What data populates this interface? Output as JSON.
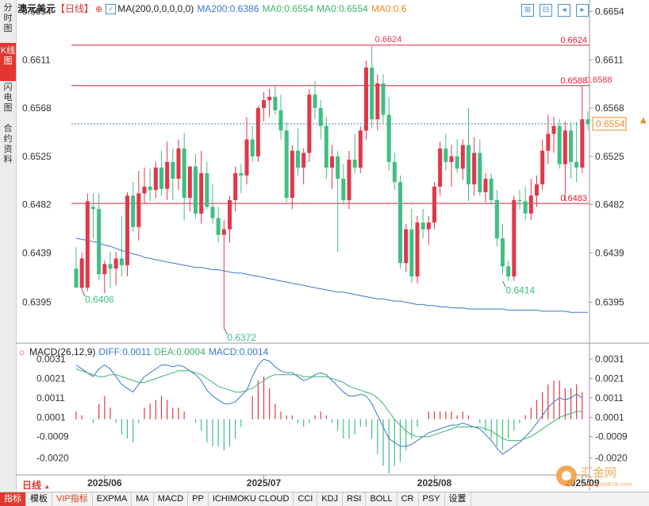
{
  "sidebar": {
    "tabs": [
      "分时图",
      "K线图",
      "闪电图",
      "合约资料"
    ],
    "active_index": 1
  },
  "header": {
    "symbol": "澳元美元",
    "period": "【日线】",
    "ma_params": "MA(200,0,0,0,0,0)",
    "ma200": "MA200:0.6386",
    "ma0a": "MA0:0.6554",
    "ma0b": "MA0:0.6554",
    "ma0c": "MA0:0.6"
  },
  "macd_header": {
    "name": "MACD(26,12,9)",
    "diff": "DIFF:0.0011",
    "dea": "DEA:0.0004",
    "macd": "MACD:0.0014"
  },
  "period_label": "日线",
  "bottom_tabs": [
    "指标",
    "模板",
    "VIP指标",
    "EXPMA",
    "MA",
    "MACD",
    "PP",
    "ICHIMOKU CLOUD",
    "CCI",
    "KDJ",
    "RSI",
    "BOLL",
    "CR",
    "PSY",
    "设置"
  ],
  "watermark": {
    "name": "汇金网",
    "url": "www.gold678.com"
  },
  "colors": {
    "up": "#e2374a",
    "down": "#3fbf84",
    "ma200": "#3a78c9",
    "diff": "#3a78c9",
    "dea": "#3cb371",
    "hline": "#d6203a",
    "last": "#f08a24"
  },
  "chart_data": [
    {
      "type": "candlestick",
      "title": "澳元美元【日线】",
      "x_tick_labels": [
        "2025/06",
        "2025/07",
        "2025/08",
        "2025/09"
      ],
      "y_ticks": [
        "0.6654",
        "0.6611",
        "0.6568",
        "0.6525",
        "0.6482",
        "0.6439",
        "0.6395"
      ],
      "ylim": [
        0.636,
        0.666
      ],
      "grid": false,
      "horizontal_lines": [
        {
          "value": 0.6624,
          "label": "0.6624"
        },
        {
          "value": 0.6588,
          "label": "0.6588"
        },
        {
          "value": 0.6483,
          "label": "0.6483"
        }
      ],
      "last_price": {
        "value": 0.6554,
        "label": "0.6554"
      },
      "annotations": [
        {
          "label": "0.6624",
          "index": 52,
          "value": 0.6624
        },
        {
          "label": "0.6588",
          "index": 89,
          "value": 0.6588
        },
        {
          "label": "0.6406",
          "index": 1,
          "value": 0.6406
        },
        {
          "label": "0.6372",
          "index": 26,
          "value": 0.6372
        },
        {
          "label": "0.6414",
          "index": 75,
          "value": 0.6414
        }
      ],
      "candles": [
        {
          "o": 0.6425,
          "h": 0.6444,
          "l": 0.641,
          "c": 0.6408
        },
        {
          "o": 0.6408,
          "h": 0.6439,
          "l": 0.6406,
          "c": 0.6434
        },
        {
          "o": 0.6408,
          "h": 0.6492,
          "l": 0.6405,
          "c": 0.6485
        },
        {
          "o": 0.648,
          "h": 0.6492,
          "l": 0.6452,
          "c": 0.6478
        },
        {
          "o": 0.6478,
          "h": 0.6492,
          "l": 0.6415,
          "c": 0.642
        },
        {
          "o": 0.642,
          "h": 0.6432,
          "l": 0.6403,
          "c": 0.6429
        },
        {
          "o": 0.6429,
          "h": 0.644,
          "l": 0.6408,
          "c": 0.6425
        },
        {
          "o": 0.6425,
          "h": 0.644,
          "l": 0.641,
          "c": 0.6434
        },
        {
          "o": 0.6434,
          "h": 0.6472,
          "l": 0.6418,
          "c": 0.6428
        },
        {
          "o": 0.6428,
          "h": 0.6493,
          "l": 0.6418,
          "c": 0.649
        },
        {
          "o": 0.649,
          "h": 0.6502,
          "l": 0.6458,
          "c": 0.6462
        },
        {
          "o": 0.6462,
          "h": 0.6512,
          "l": 0.645,
          "c": 0.6492
        },
        {
          "o": 0.6492,
          "h": 0.6515,
          "l": 0.6483,
          "c": 0.6498
        },
        {
          "o": 0.6498,
          "h": 0.6514,
          "l": 0.6485,
          "c": 0.6495
        },
        {
          "o": 0.6495,
          "h": 0.652,
          "l": 0.6488,
          "c": 0.6515
        },
        {
          "o": 0.6515,
          "h": 0.653,
          "l": 0.649,
          "c": 0.6496
        },
        {
          "o": 0.6496,
          "h": 0.6538,
          "l": 0.6486,
          "c": 0.652
        },
        {
          "o": 0.652,
          "h": 0.6532,
          "l": 0.6486,
          "c": 0.6505
        },
        {
          "o": 0.6505,
          "h": 0.654,
          "l": 0.6495,
          "c": 0.6532
        },
        {
          "o": 0.6532,
          "h": 0.6546,
          "l": 0.6468,
          "c": 0.6488
        },
        {
          "o": 0.6488,
          "h": 0.6515,
          "l": 0.6476,
          "c": 0.6516
        },
        {
          "o": 0.6516,
          "h": 0.6527,
          "l": 0.647,
          "c": 0.6474
        },
        {
          "o": 0.6474,
          "h": 0.653,
          "l": 0.6465,
          "c": 0.651
        },
        {
          "o": 0.651,
          "h": 0.652,
          "l": 0.6478,
          "c": 0.648
        },
        {
          "o": 0.648,
          "h": 0.65,
          "l": 0.6465,
          "c": 0.647
        },
        {
          "o": 0.647,
          "h": 0.648,
          "l": 0.6448,
          "c": 0.6455
        },
        {
          "o": 0.6455,
          "h": 0.6468,
          "l": 0.6372,
          "c": 0.646
        },
        {
          "o": 0.646,
          "h": 0.649,
          "l": 0.6448,
          "c": 0.6486
        },
        {
          "o": 0.6486,
          "h": 0.6516,
          "l": 0.6476,
          "c": 0.651
        },
        {
          "o": 0.651,
          "h": 0.6518,
          "l": 0.6492,
          "c": 0.6508
        },
        {
          "o": 0.6508,
          "h": 0.656,
          "l": 0.65,
          "c": 0.654
        },
        {
          "o": 0.654,
          "h": 0.6552,
          "l": 0.652,
          "c": 0.6525
        },
        {
          "o": 0.6525,
          "h": 0.657,
          "l": 0.652,
          "c": 0.6568
        },
        {
          "o": 0.6568,
          "h": 0.6582,
          "l": 0.6556,
          "c": 0.6575
        },
        {
          "o": 0.6575,
          "h": 0.6585,
          "l": 0.656,
          "c": 0.6578
        },
        {
          "o": 0.6578,
          "h": 0.6588,
          "l": 0.6562,
          "c": 0.6566
        },
        {
          "o": 0.6566,
          "h": 0.658,
          "l": 0.654,
          "c": 0.6548
        },
        {
          "o": 0.6548,
          "h": 0.6555,
          "l": 0.6484,
          "c": 0.6488
        },
        {
          "o": 0.6488,
          "h": 0.6535,
          "l": 0.6478,
          "c": 0.653
        },
        {
          "o": 0.653,
          "h": 0.655,
          "l": 0.6508,
          "c": 0.6515
        },
        {
          "o": 0.6515,
          "h": 0.6532,
          "l": 0.65,
          "c": 0.6528
        },
        {
          "o": 0.6528,
          "h": 0.6585,
          "l": 0.652,
          "c": 0.658
        },
        {
          "o": 0.658,
          "h": 0.6592,
          "l": 0.6558,
          "c": 0.6568
        },
        {
          "o": 0.6568,
          "h": 0.6575,
          "l": 0.654,
          "c": 0.6552
        },
        {
          "o": 0.6552,
          "h": 0.656,
          "l": 0.6505,
          "c": 0.6515
        },
        {
          "o": 0.6515,
          "h": 0.6535,
          "l": 0.6496,
          "c": 0.6525
        },
        {
          "o": 0.6525,
          "h": 0.653,
          "l": 0.644,
          "c": 0.6505
        },
        {
          "o": 0.6505,
          "h": 0.6518,
          "l": 0.6482,
          "c": 0.6486
        },
        {
          "o": 0.6486,
          "h": 0.653,
          "l": 0.6478,
          "c": 0.6522
        },
        {
          "o": 0.6522,
          "h": 0.6545,
          "l": 0.651,
          "c": 0.6515
        },
        {
          "o": 0.6515,
          "h": 0.6552,
          "l": 0.651,
          "c": 0.6548
        },
        {
          "o": 0.6548,
          "h": 0.661,
          "l": 0.654,
          "c": 0.6604
        },
        {
          "o": 0.6604,
          "h": 0.6624,
          "l": 0.655,
          "c": 0.6558
        },
        {
          "o": 0.6558,
          "h": 0.6598,
          "l": 0.6548,
          "c": 0.659
        },
        {
          "o": 0.659,
          "h": 0.6598,
          "l": 0.6555,
          "c": 0.6562
        },
        {
          "o": 0.6562,
          "h": 0.6578,
          "l": 0.6512,
          "c": 0.652
        },
        {
          "o": 0.652,
          "h": 0.6528,
          "l": 0.6495,
          "c": 0.6502
        },
        {
          "o": 0.6502,
          "h": 0.6508,
          "l": 0.6425,
          "c": 0.643
        },
        {
          "o": 0.643,
          "h": 0.6465,
          "l": 0.6422,
          "c": 0.646
        },
        {
          "o": 0.646,
          "h": 0.6478,
          "l": 0.6412,
          "c": 0.6418
        },
        {
          "o": 0.6418,
          "h": 0.6472,
          "l": 0.6412,
          "c": 0.6466
        },
        {
          "o": 0.6466,
          "h": 0.6478,
          "l": 0.6452,
          "c": 0.646
        },
        {
          "o": 0.646,
          "h": 0.6472,
          "l": 0.6446,
          "c": 0.6466
        },
        {
          "o": 0.6466,
          "h": 0.6502,
          "l": 0.646,
          "c": 0.6498
        },
        {
          "o": 0.6498,
          "h": 0.6538,
          "l": 0.649,
          "c": 0.6532
        },
        {
          "o": 0.6532,
          "h": 0.6545,
          "l": 0.6512,
          "c": 0.652
        },
        {
          "o": 0.652,
          "h": 0.6535,
          "l": 0.6498,
          "c": 0.6525
        },
        {
          "o": 0.6525,
          "h": 0.654,
          "l": 0.651,
          "c": 0.6514
        },
        {
          "o": 0.6514,
          "h": 0.654,
          "l": 0.6504,
          "c": 0.6535
        },
        {
          "o": 0.6535,
          "h": 0.6568,
          "l": 0.6485,
          "c": 0.65
        },
        {
          "o": 0.65,
          "h": 0.6542,
          "l": 0.649,
          "c": 0.6528
        },
        {
          "o": 0.6528,
          "h": 0.654,
          "l": 0.649,
          "c": 0.6493
        },
        {
          "o": 0.6493,
          "h": 0.651,
          "l": 0.6484,
          "c": 0.6505
        },
        {
          "o": 0.6505,
          "h": 0.651,
          "l": 0.6482,
          "c": 0.6486
        },
        {
          "o": 0.6486,
          "h": 0.6495,
          "l": 0.6445,
          "c": 0.6452
        },
        {
          "o": 0.6452,
          "h": 0.6465,
          "l": 0.642,
          "c": 0.6427
        },
        {
          "o": 0.6427,
          "h": 0.6432,
          "l": 0.6414,
          "c": 0.6418
        },
        {
          "o": 0.6418,
          "h": 0.649,
          "l": 0.6414,
          "c": 0.6486
        },
        {
          "o": 0.6486,
          "h": 0.6495,
          "l": 0.6478,
          "c": 0.6485
        },
        {
          "o": 0.6485,
          "h": 0.6498,
          "l": 0.6468,
          "c": 0.6474
        },
        {
          "o": 0.6474,
          "h": 0.6505,
          "l": 0.6468,
          "c": 0.649
        },
        {
          "o": 0.649,
          "h": 0.6508,
          "l": 0.648,
          "c": 0.65
        },
        {
          "o": 0.65,
          "h": 0.654,
          "l": 0.6495,
          "c": 0.653
        },
        {
          "o": 0.653,
          "h": 0.6562,
          "l": 0.6518,
          "c": 0.6545
        },
        {
          "o": 0.6545,
          "h": 0.656,
          "l": 0.6528,
          "c": 0.6552
        },
        {
          "o": 0.6552,
          "h": 0.6558,
          "l": 0.6514,
          "c": 0.6518
        },
        {
          "o": 0.6518,
          "h": 0.6556,
          "l": 0.6485,
          "c": 0.6548
        },
        {
          "o": 0.6548,
          "h": 0.6555,
          "l": 0.6505,
          "c": 0.652
        },
        {
          "o": 0.652,
          "h": 0.6556,
          "l": 0.6502,
          "c": 0.6515
        },
        {
          "o": 0.6515,
          "h": 0.6588,
          "l": 0.651,
          "c": 0.6558
        },
        {
          "o": 0.6558,
          "h": 0.6565,
          "l": 0.6548,
          "c": 0.6554
        }
      ],
      "ma200": [
        0.6452,
        0.6451,
        0.645,
        0.6449,
        0.6448,
        0.6446,
        0.6445,
        0.6443,
        0.6441,
        0.644,
        0.6438,
        0.6437,
        0.6435,
        0.6434,
        0.6433,
        0.6432,
        0.6431,
        0.643,
        0.6429,
        0.6428,
        0.6427,
        0.6426,
        0.6426,
        0.6425,
        0.6424,
        0.6424,
        0.6423,
        0.6422,
        0.6421,
        0.6421,
        0.642,
        0.6419,
        0.6418,
        0.6417,
        0.6416,
        0.6415,
        0.6414,
        0.6413,
        0.6412,
        0.6411,
        0.641,
        0.6409,
        0.6408,
        0.6407,
        0.6406,
        0.6405,
        0.6404,
        0.6404,
        0.6403,
        0.6402,
        0.6401,
        0.64,
        0.6399,
        0.6398,
        0.6398,
        0.6397,
        0.6396,
        0.6396,
        0.6395,
        0.6394,
        0.6393,
        0.6393,
        0.6392,
        0.6392,
        0.6391,
        0.6391,
        0.639,
        0.639,
        0.639,
        0.6389,
        0.6389,
        0.6389,
        0.6389,
        0.6389,
        0.6389,
        0.6389,
        0.6388,
        0.6388,
        0.6388,
        0.6388,
        0.6388,
        0.6388,
        0.6387,
        0.6387,
        0.6387,
        0.6387,
        0.6387,
        0.6386,
        0.6386,
        0.6386,
        0.6386
      ]
    },
    {
      "type": "macd",
      "name": "MACD(26,12,9)",
      "y_ticks": [
        "0.0031",
        "0.0021",
        "0.0011",
        "0.0001",
        "-0.0009",
        "-0.0020"
      ],
      "ylim": [
        -0.0028,
        0.0036
      ],
      "diff": [
        0.0028,
        0.0026,
        0.0024,
        0.0022,
        0.0026,
        0.0028,
        0.0026,
        0.0022,
        0.0018,
        0.0016,
        0.0014,
        0.0018,
        0.0022,
        0.0024,
        0.0026,
        0.0028,
        0.0028,
        0.0027,
        0.0028,
        0.0027,
        0.0025,
        0.0023,
        0.002,
        0.0015,
        0.0012,
        0.001,
        0.0008,
        0.0008,
        0.0009,
        0.0012,
        0.0015,
        0.0022,
        0.0028,
        0.0031,
        0.003,
        0.0027,
        0.0025,
        0.0024,
        0.0024,
        0.0022,
        0.002,
        0.0021,
        0.0023,
        0.0024,
        0.0023,
        0.002,
        0.0017,
        0.0014,
        0.0012,
        0.0012,
        0.0013,
        0.0012,
        0.0008,
        0.0002,
        -0.0004,
        -0.001,
        -0.0012,
        -0.0014,
        -0.0014,
        -0.0013,
        -0.0011,
        -0.0009,
        -0.0007,
        -0.0006,
        -0.0005,
        -0.0004,
        -0.0003,
        -0.0003,
        -0.0002,
        -0.0003,
        -0.0004,
        -0.0005,
        -0.0008,
        -0.0011,
        -0.0015,
        -0.0018,
        -0.0016,
        -0.0014,
        -0.0012,
        -0.0009,
        -0.0006,
        -0.0002,
        0.0002,
        0.0006,
        0.0009,
        0.0011,
        0.001,
        0.0011,
        0.0013,
        0.0011
      ],
      "dea": [
        0.0026,
        0.0025,
        0.0024,
        0.0023,
        0.0022,
        0.0022,
        0.0023,
        0.0023,
        0.0022,
        0.0021,
        0.002,
        0.0019,
        0.0019,
        0.002,
        0.0021,
        0.0022,
        0.0023,
        0.0024,
        0.0025,
        0.0025,
        0.0025,
        0.0024,
        0.0023,
        0.0021,
        0.0019,
        0.0017,
        0.0016,
        0.0015,
        0.0014,
        0.0014,
        0.0015,
        0.0016,
        0.0018,
        0.002,
        0.0022,
        0.0023,
        0.0023,
        0.0023,
        0.0023,
        0.0023,
        0.0022,
        0.0022,
        0.0022,
        0.0022,
        0.0022,
        0.0021,
        0.002,
        0.0019,
        0.0017,
        0.0016,
        0.0015,
        0.0014,
        0.0013,
        0.0011,
        0.0008,
        0.0004,
        0.0,
        -0.0003,
        -0.0006,
        -0.0008,
        -0.0009,
        -0.0009,
        -0.0009,
        -0.0008,
        -0.0007,
        -0.0006,
        -0.0005,
        -0.0004,
        -0.0004,
        -0.0004,
        -0.0004,
        -0.0004,
        -0.0005,
        -0.0006,
        -0.0008,
        -0.001,
        -0.0011,
        -0.0011,
        -0.0011,
        -0.001,
        -0.0009,
        -0.0007,
        -0.0005,
        -0.0003,
        -0.0001,
        0.0001,
        0.0002,
        0.0003,
        0.0004,
        0.0004
      ]
    }
  ]
}
